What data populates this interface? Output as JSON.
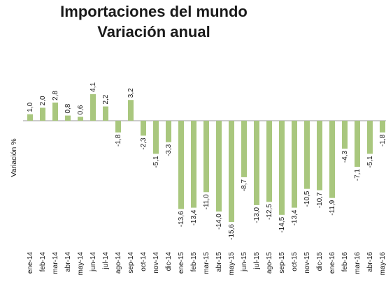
{
  "chart_data": {
    "type": "bar",
    "title": "Importaciones del mundo",
    "subtitle": "Variación anual",
    "ylabel": "Variación %",
    "xlabel": "",
    "ylim": [
      -16,
      4.5
    ],
    "grid": false,
    "legend": "none",
    "bar_color": "#a9c77e",
    "categories": [
      "ene-14",
      "feb-14",
      "mar-14",
      "abr-14",
      "may-14",
      "jun-14",
      "jul-14",
      "ago-14",
      "sep-14",
      "oct-14",
      "nov-14",
      "dic-14",
      "ene-15",
      "feb-15",
      "mar-15",
      "abr-15",
      "may-15",
      "jun-15",
      "jul-15",
      "ago-15",
      "sep-15",
      "oct-15",
      "nov-15",
      "dic-15",
      "ene-16",
      "feb-16",
      "mar-16",
      "abr-16",
      "may-16"
    ],
    "values": [
      1.0,
      2.0,
      2.8,
      0.8,
      0.6,
      4.1,
      2.2,
      -1.8,
      3.2,
      -2.3,
      -5.1,
      -3.3,
      -13.6,
      -13.4,
      -11.0,
      -14.0,
      -15.6,
      -8.7,
      -13.0,
      -12.5,
      -14.5,
      -13.4,
      -10.5,
      -10.7,
      -11.9,
      -4.3,
      -7.1,
      -5.1,
      -1.8
    ],
    "data_labels": [
      "1,0",
      "2,0",
      "2,8",
      "0,8",
      "0,6",
      "4,1",
      "2,2",
      "-1,8",
      "3,2",
      "-2,3",
      "-5,1",
      "-3,3",
      "-13,6",
      "-13,4",
      "-11,0",
      "-14,0",
      "-15,6",
      "-8,7",
      "-13,0",
      "-12,5",
      "-14,5",
      "-13,4",
      "-10,5",
      "-10,7",
      "-11,9",
      "-4,3",
      "-7,1",
      "-5,1",
      "-1,8"
    ]
  }
}
